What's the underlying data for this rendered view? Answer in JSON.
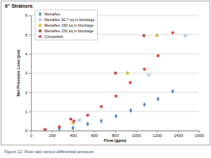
{
  "chart_data": {
    "type": "scatter",
    "title": "6\" Strainers",
    "x_label": "Flow (gpm)",
    "y_label": "Net Pressure Loss (psi)",
    "caption": "Figure 12.  Flow rate versus differential pressure",
    "xlim": [
      0,
      1600
    ],
    "xticks": [
      0,
      200,
      400,
      600,
      800,
      1000,
      1200,
      1400,
      1600
    ],
    "ylim": [
      0,
      6
    ],
    "yticks": [
      0,
      1,
      2,
      3,
      4,
      5,
      6
    ],
    "grid": true,
    "legend": "upper left",
    "series": [
      {
        "name": "Metraflex",
        "color": "#4a7ebb",
        "marker": "diamond",
        "x": [
          270,
          400,
          540,
          670,
          810,
          950,
          1080,
          1210,
          1350
        ],
        "values": [
          0.1,
          0.15,
          0.35,
          0.5,
          0.75,
          1.05,
          1.35,
          1.65,
          2.05
        ]
      },
      {
        "name": "Metraflex 92.7 sq in blockage",
        "color": "#7fb0d9",
        "marker": "x",
        "x": [
          130,
          460,
          1120,
          1470
        ],
        "values": [
          0.05,
          0.55,
          2.9,
          4.95
        ]
      },
      {
        "name": "Metraflex 192 sq in blockage",
        "color": "#c8b400",
        "marker": "triangle",
        "x": [
          400,
          920,
          1200
        ],
        "values": [
          0.4,
          3.0,
          4.95
        ]
      },
      {
        "name": "Metraflex 231 sq in blockage",
        "color": "#b03a2e",
        "marker": "square",
        "x": [
          380,
          805,
          1075
        ],
        "values": [
          0.6,
          3.0,
          4.95
        ]
      },
      {
        "name": "Competitor",
        "color": "#e03030",
        "marker": "circle",
        "x": [
          135,
          270,
          410,
          540,
          670,
          810,
          945,
          1080,
          1210,
          1350
        ],
        "values": [
          0.05,
          0.2,
          0.5,
          0.8,
          1.25,
          1.8,
          2.5,
          3.2,
          3.9,
          5.1
        ]
      }
    ]
  }
}
